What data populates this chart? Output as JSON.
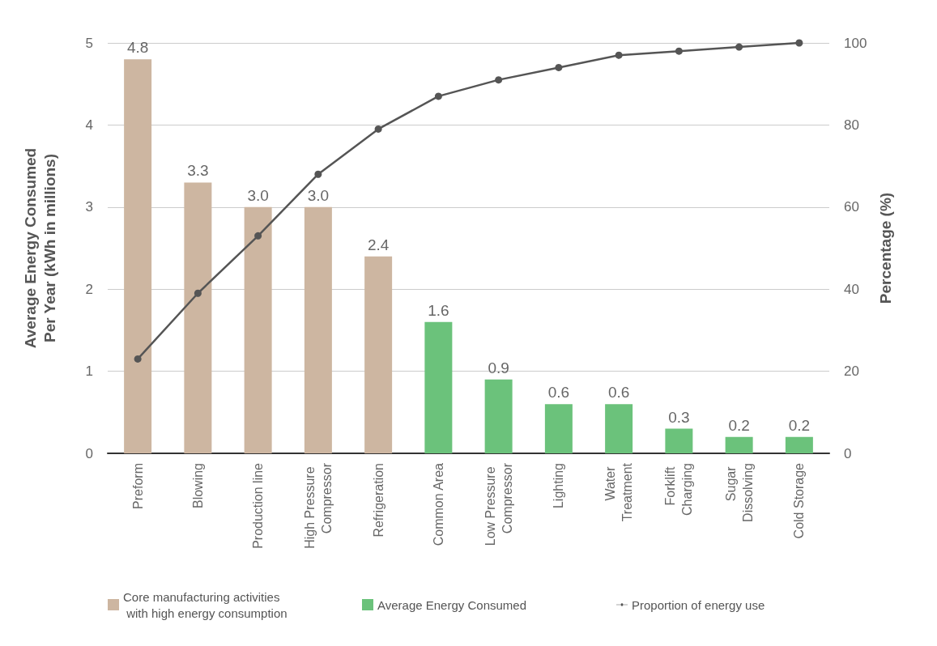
{
  "chart_data": {
    "type": "bar",
    "ylabel": "Average Energy Consumed\nPer Year (kWh in millions)",
    "y2label": "Percentage (%)",
    "categories": [
      "Preform",
      "Blowing",
      "Production line",
      "High Pressure Compressor",
      "Refrigeration",
      "Common Area",
      "Low Pressure Compressor",
      "Lighting",
      "Water Treatment",
      "Forklift Charging",
      "Sugar Dissolving",
      "Cold Storage"
    ],
    "series": [
      {
        "name": "Core manufacturing activities with high energy consumption",
        "color": "#cdb6a1",
        "values": [
          4.8,
          3.3,
          3.0,
          3.0,
          2.4,
          null,
          null,
          null,
          null,
          null,
          null,
          null
        ],
        "value_labels": [
          "4.8",
          "3.3",
          "3.0",
          "3.0",
          "2.4",
          null,
          null,
          null,
          null,
          null,
          null,
          null
        ]
      },
      {
        "name": "Average Energy Consumed",
        "color": "#6bc27b",
        "values": [
          null,
          null,
          null,
          null,
          null,
          1.6,
          0.9,
          0.6,
          0.6,
          0.3,
          0.2,
          0.2
        ],
        "value_labels": [
          null,
          null,
          null,
          null,
          null,
          "1.6",
          "0.9",
          "0.6",
          "0.6",
          "0.3",
          "0.2",
          "0.2"
        ]
      },
      {
        "name": "Proportion of energy use",
        "type": "line",
        "axis": "y2",
        "color": "#555555",
        "marker": "circle",
        "values": [
          23,
          39,
          53,
          68,
          79,
          87,
          91,
          94,
          97,
          98,
          99,
          100
        ]
      }
    ],
    "stacked": true,
    "ylim": [
      0,
      5
    ],
    "yticks": [
      0,
      1,
      2,
      3,
      4,
      5
    ],
    "y2lim": [
      0,
      100
    ],
    "y2ticks": [
      0,
      20,
      40,
      60,
      80,
      100
    ],
    "grid": "y",
    "legend": "bottom"
  }
}
